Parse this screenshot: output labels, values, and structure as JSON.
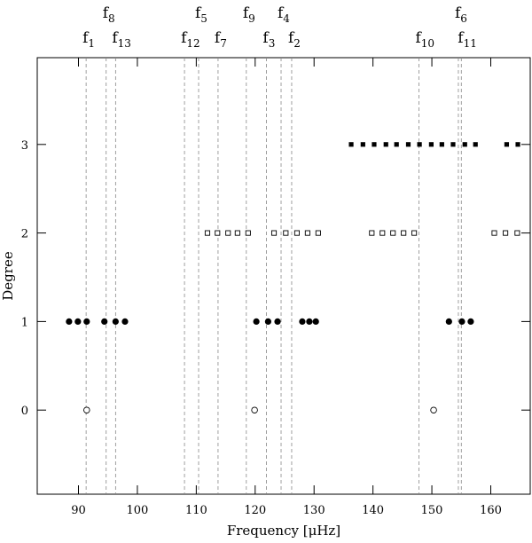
{
  "chart_data": {
    "type": "scatter",
    "x_label": "Frequency [μHz]",
    "y_label": "Degree",
    "xlim": [
      83,
      166.7
    ],
    "ylim": [
      -0.95,
      3.98
    ],
    "xticks": [
      90,
      100,
      110,
      120,
      130,
      140,
      150,
      160
    ],
    "yticks": [
      0,
      1,
      2,
      3
    ],
    "mode_lines": {
      "lower": [
        {
          "name": "f",
          "sub": "1",
          "value": 91.3
        },
        {
          "name": "f",
          "sub": "13",
          "value": 96.3
        },
        {
          "name": "f",
          "sub": "12",
          "value": 108.0
        },
        {
          "name": "f",
          "sub": "7",
          "value": 113.7
        },
        {
          "name": "f",
          "sub": "3",
          "value": 121.9
        },
        {
          "name": "f",
          "sub": "2",
          "value": 126.2
        },
        {
          "name": "f",
          "sub": "10",
          "value": 147.8
        },
        {
          "name": "f",
          "sub": "11",
          "value": 155.0
        }
      ],
      "upper": [
        {
          "name": "f",
          "sub": "8",
          "value": 94.7
        },
        {
          "name": "f",
          "sub": "5",
          "value": 110.4
        },
        {
          "name": "f",
          "sub": "9",
          "value": 118.5
        },
        {
          "name": "f",
          "sub": "4",
          "value": 124.4
        },
        {
          "name": "f",
          "sub": "6",
          "value": 154.5
        }
      ]
    },
    "series": [
      {
        "marker": "open-circle",
        "color": "#000000",
        "x": [
          91.4,
          119.9,
          150.3
        ],
        "y": [
          0,
          0,
          0
        ]
      },
      {
        "marker": "filled-circle",
        "color": "#000000",
        "x": [
          88.4,
          89.9,
          91.4,
          94.4,
          96.3,
          97.9,
          120.2,
          122.2,
          123.8,
          128.0,
          129.2,
          130.3,
          152.9,
          155.1,
          156.6
        ],
        "y": [
          1,
          1,
          1,
          1,
          1,
          1,
          1,
          1,
          1,
          1,
          1,
          1,
          1,
          1,
          1
        ]
      },
      {
        "marker": "open-square",
        "color": "#000000",
        "x": [
          111.9,
          113.6,
          115.4,
          117.0,
          118.8,
          123.2,
          125.2,
          127.1,
          128.9,
          130.7,
          139.8,
          141.6,
          143.4,
          145.2,
          147.0,
          160.6,
          162.5,
          164.5
        ],
        "y": [
          2,
          2,
          2,
          2,
          2,
          2,
          2,
          2,
          2,
          2,
          2,
          2,
          2,
          2,
          2,
          2,
          2,
          2
        ]
      },
      {
        "marker": "filled-square",
        "color": "#000000",
        "x": [
          136.3,
          138.3,
          140.2,
          142.2,
          144.0,
          146.0,
          147.9,
          149.9,
          151.7,
          153.6,
          155.6,
          157.4,
          162.7,
          164.6
        ],
        "y": [
          3,
          3,
          3,
          3,
          3,
          3,
          3,
          3,
          3,
          3,
          3,
          3,
          3,
          3
        ]
      }
    ]
  }
}
